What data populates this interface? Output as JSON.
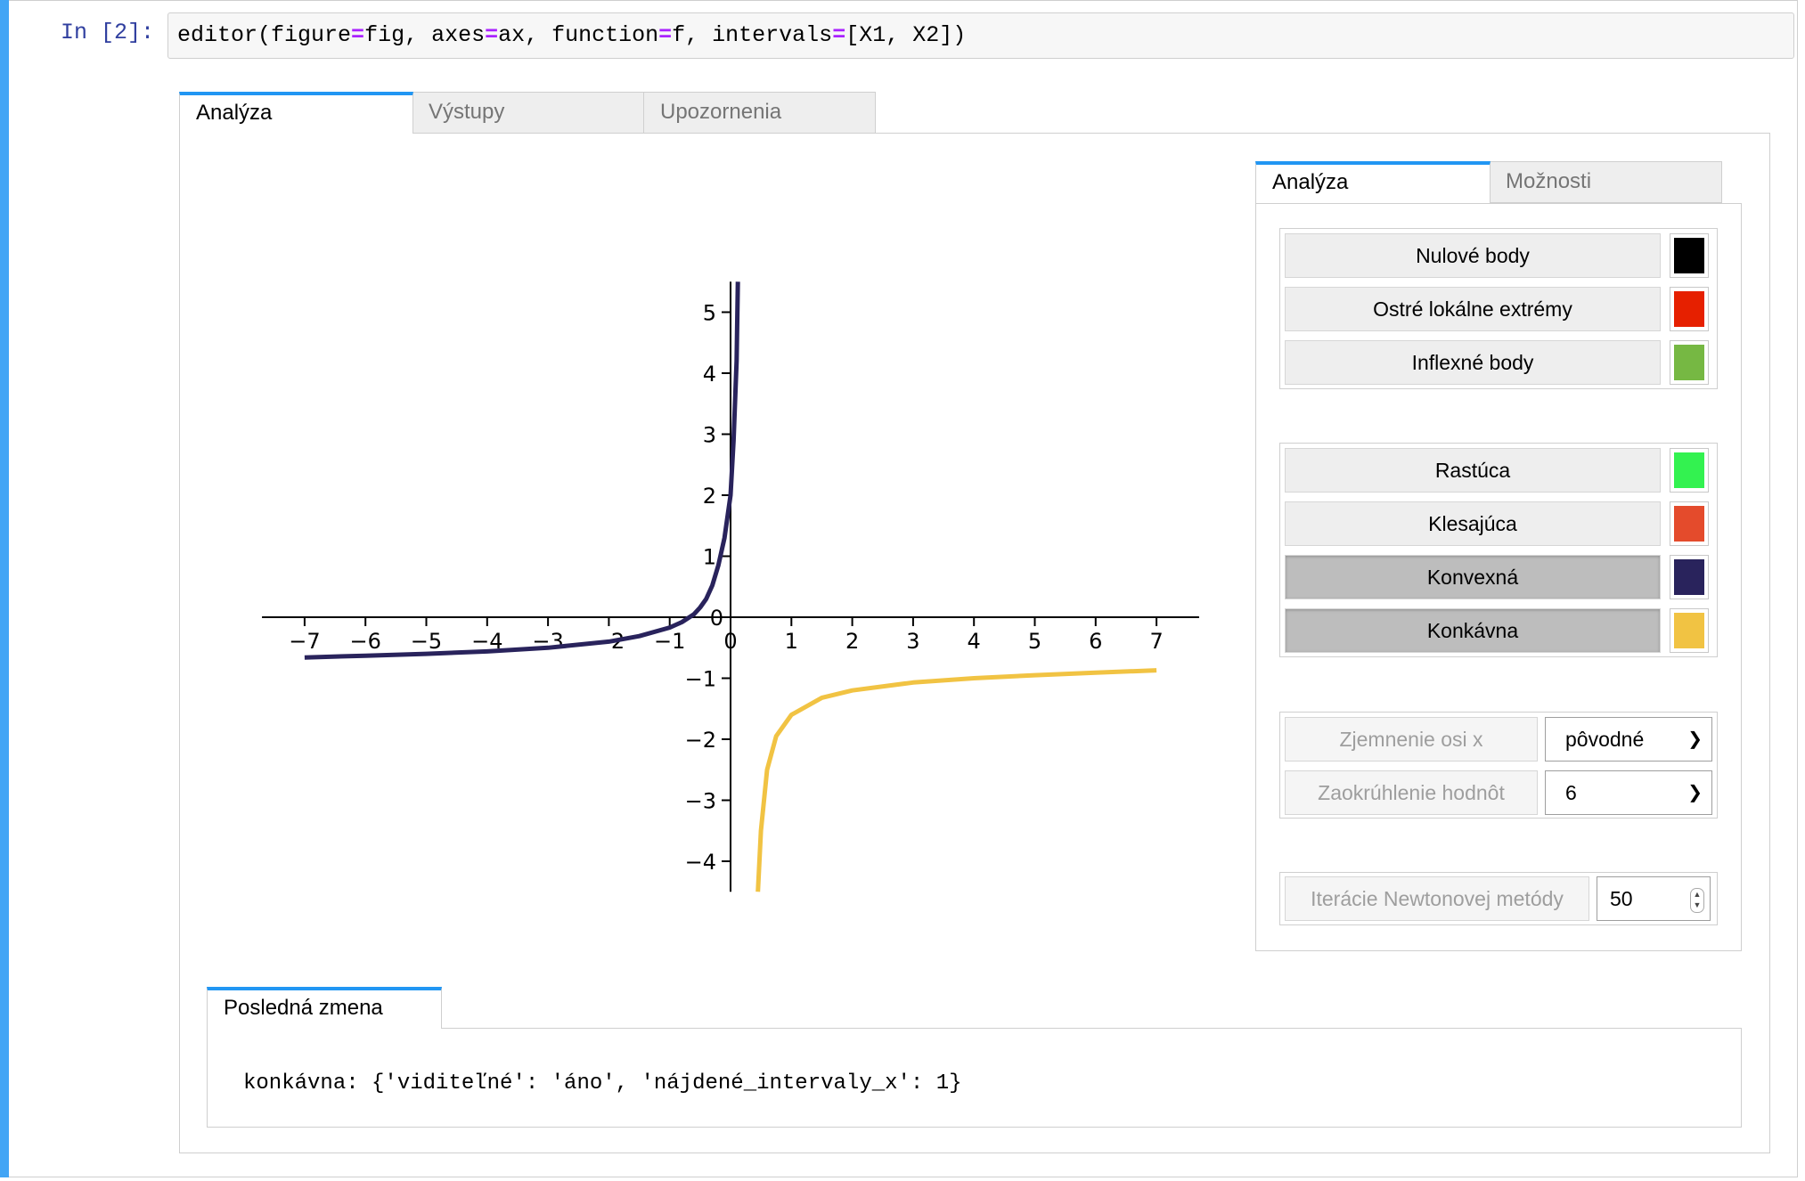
{
  "cell": {
    "prompt": "In [2]:",
    "code_tokens": [
      "editor(figure",
      "=",
      "fig, axes",
      "=",
      "ax, function",
      "=",
      "f, intervals",
      "=",
      "[X1, X2])"
    ]
  },
  "main_tabs": [
    "Analýza",
    "Výstupy",
    "Upozornenia"
  ],
  "side_tabs": [
    "Analýza",
    "Možnosti"
  ],
  "point_buttons": [
    {
      "label": "Nulové body",
      "color": "#000000"
    },
    {
      "label": "Ostré lokálne extrémy",
      "color": "#e62000"
    },
    {
      "label": "Inflexné body",
      "color": "#76b843"
    }
  ],
  "interval_buttons": [
    {
      "label": "Rastúca",
      "color": "#33f250",
      "pressed": false
    },
    {
      "label": "Klesajúca",
      "color": "#e44b2c",
      "pressed": false
    },
    {
      "label": "Konvexná",
      "color": "#29235c",
      "pressed": true
    },
    {
      "label": "Konkávna",
      "color": "#f1c343",
      "pressed": true
    }
  ],
  "settings": {
    "x_refine_label": "Zjemnenie osi x",
    "x_refine_value": "pôvodné",
    "rounding_label": "Zaokrúhlenie hodnôt",
    "rounding_value": "6",
    "newton_label": "Iterácie Newtonovej metódy",
    "newton_value": "50"
  },
  "log": {
    "tab": "Posledná zmena",
    "text": "konkávna: {'viditeľné': 'áno', 'nájdené_intervaly_x': 1}"
  },
  "chart_data": {
    "type": "line",
    "title": "",
    "xlabel": "",
    "ylabel": "",
    "xlim": [
      -7.7,
      7.7
    ],
    "ylim": [
      -4.5,
      5.5
    ],
    "x_ticks": [
      -7,
      -6,
      -5,
      -4,
      -3,
      -2,
      -1,
      0,
      1,
      2,
      3,
      4,
      5,
      6,
      7
    ],
    "y_ticks": [
      -4,
      -3,
      -2,
      -1,
      0,
      1,
      2,
      3,
      4,
      5
    ],
    "grid": false,
    "series": [
      {
        "color": "#29235c",
        "x": [
          -7,
          -6,
          -5,
          -4,
          -3,
          -2,
          -1.5,
          -1,
          -0.8,
          -0.6,
          -0.5,
          -0.4,
          -0.3,
          -0.2,
          -0.1,
          0,
          0.05,
          0.1,
          0.12
        ],
        "y": [
          -0.66,
          -0.63,
          -0.6,
          -0.56,
          -0.5,
          -0.4,
          -0.31,
          -0.17,
          -0.08,
          0.05,
          0.16,
          0.3,
          0.52,
          0.85,
          1.3,
          2.0,
          2.9,
          4.2,
          5.5
        ]
      },
      {
        "color": "#f1c343",
        "x": [
          0.45,
          0.5,
          0.6,
          0.75,
          1,
          1.5,
          2,
          3,
          4,
          5,
          6,
          7
        ],
        "y": [
          -4.5,
          -3.5,
          -2.5,
          -1.95,
          -1.6,
          -1.32,
          -1.2,
          -1.07,
          -1.0,
          -0.95,
          -0.91,
          -0.87
        ]
      }
    ]
  }
}
